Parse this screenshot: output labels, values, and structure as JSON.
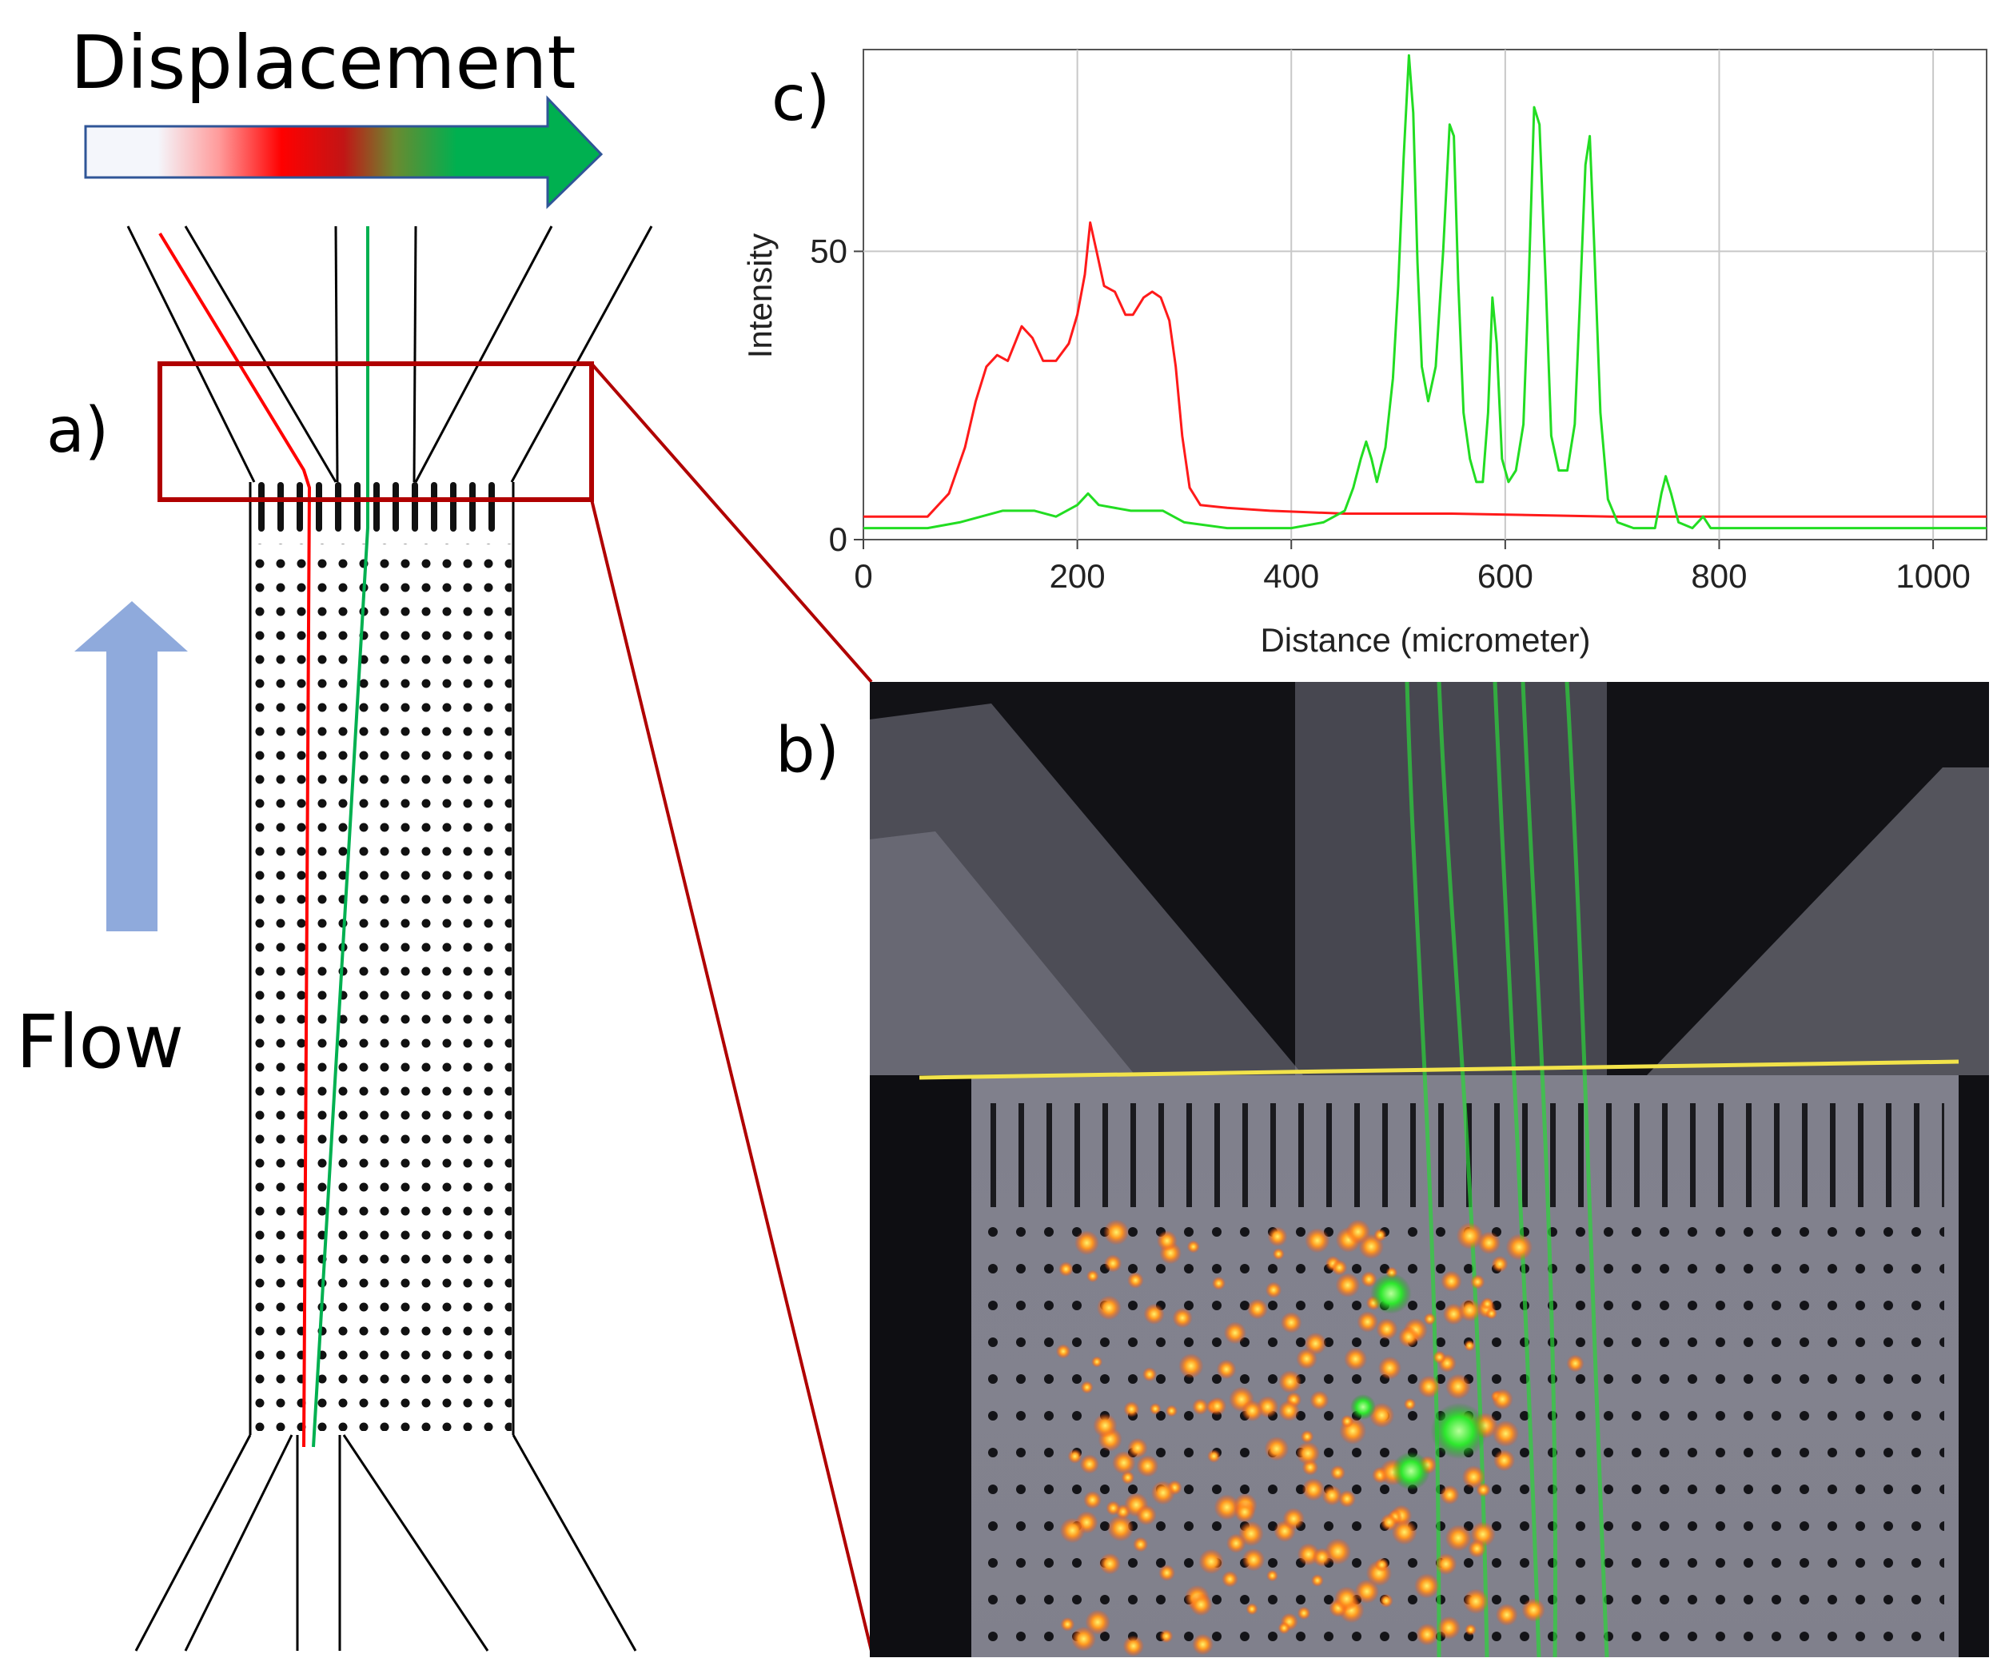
{
  "figure": {
    "title_displacement": "Displacement",
    "label_flow": "Flow",
    "panel_a": "a)",
    "panel_b": "b)",
    "panel_c": "c)"
  },
  "colors": {
    "red_trace": "#ff1a1a",
    "green_trace": "#22dd22",
    "arrow_green": "#00b050",
    "arrow_red": "#ff0000",
    "flow_arrow": "#8faadc",
    "zoom_box": "#b00000",
    "yellow_line": "#f2e34a"
  },
  "chart_data": {
    "type": "line",
    "title": "",
    "xlabel": "Distance (micrometer)",
    "ylabel": "Intensity",
    "xlim": [
      0,
      1050
    ],
    "ylim": [
      0,
      85
    ],
    "xticks": [
      0,
      200,
      400,
      600,
      800,
      1000
    ],
    "yticks": [
      0,
      50
    ],
    "grid": true,
    "series": [
      {
        "name": "red",
        "color": "#ff1a1a",
        "points": [
          [
            0,
            4
          ],
          [
            60,
            4
          ],
          [
            80,
            8
          ],
          [
            95,
            16
          ],
          [
            105,
            24
          ],
          [
            115,
            30
          ],
          [
            125,
            32
          ],
          [
            135,
            31
          ],
          [
            148,
            37
          ],
          [
            158,
            35
          ],
          [
            168,
            31
          ],
          [
            180,
            31
          ],
          [
            192,
            34
          ],
          [
            200,
            39
          ],
          [
            207,
            46
          ],
          [
            212,
            55
          ],
          [
            218,
            50
          ],
          [
            225,
            44
          ],
          [
            235,
            43
          ],
          [
            245,
            39
          ],
          [
            252,
            39
          ],
          [
            262,
            42
          ],
          [
            270,
            43
          ],
          [
            278,
            42
          ],
          [
            286,
            38
          ],
          [
            292,
            30
          ],
          [
            298,
            18
          ],
          [
            305,
            9
          ],
          [
            315,
            6
          ],
          [
            340,
            5.5
          ],
          [
            380,
            5
          ],
          [
            450,
            4.5
          ],
          [
            550,
            4.5
          ],
          [
            700,
            4
          ],
          [
            1050,
            4
          ]
        ]
      },
      {
        "name": "green",
        "color": "#22dd22",
        "points": [
          [
            0,
            2
          ],
          [
            60,
            2
          ],
          [
            90,
            3
          ],
          [
            110,
            4
          ],
          [
            130,
            5
          ],
          [
            160,
            5
          ],
          [
            180,
            4
          ],
          [
            200,
            6
          ],
          [
            210,
            8
          ],
          [
            220,
            6
          ],
          [
            250,
            5
          ],
          [
            280,
            5
          ],
          [
            300,
            3
          ],
          [
            340,
            2
          ],
          [
            400,
            2
          ],
          [
            430,
            3
          ],
          [
            450,
            5
          ],
          [
            458,
            9
          ],
          [
            465,
            14
          ],
          [
            470,
            17
          ],
          [
            475,
            14
          ],
          [
            480,
            10
          ],
          [
            488,
            16
          ],
          [
            495,
            28
          ],
          [
            500,
            44
          ],
          [
            505,
            66
          ],
          [
            510,
            84
          ],
          [
            514,
            74
          ],
          [
            518,
            48
          ],
          [
            522,
            30
          ],
          [
            528,
            24
          ],
          [
            535,
            30
          ],
          [
            542,
            50
          ],
          [
            548,
            72
          ],
          [
            552,
            70
          ],
          [
            556,
            45
          ],
          [
            561,
            22
          ],
          [
            567,
            14
          ],
          [
            573,
            10
          ],
          [
            579,
            10
          ],
          [
            584,
            22
          ],
          [
            588,
            42
          ],
          [
            592,
            34
          ],
          [
            597,
            14
          ],
          [
            603,
            10
          ],
          [
            610,
            12
          ],
          [
            617,
            20
          ],
          [
            622,
            45
          ],
          [
            627,
            75
          ],
          [
            632,
            72
          ],
          [
            638,
            44
          ],
          [
            643,
            18
          ],
          [
            650,
            12
          ],
          [
            658,
            12
          ],
          [
            665,
            20
          ],
          [
            670,
            42
          ],
          [
            675,
            65
          ],
          [
            679,
            70
          ],
          [
            683,
            52
          ],
          [
            689,
            22
          ],
          [
            696,
            7
          ],
          [
            705,
            3
          ],
          [
            720,
            2
          ],
          [
            740,
            2
          ],
          [
            746,
            8
          ],
          [
            750,
            11
          ],
          [
            755,
            8
          ],
          [
            762,
            3
          ],
          [
            775,
            2
          ],
          [
            785,
            4
          ],
          [
            792,
            2
          ],
          [
            850,
            2
          ],
          [
            1050,
            2
          ]
        ]
      }
    ]
  }
}
